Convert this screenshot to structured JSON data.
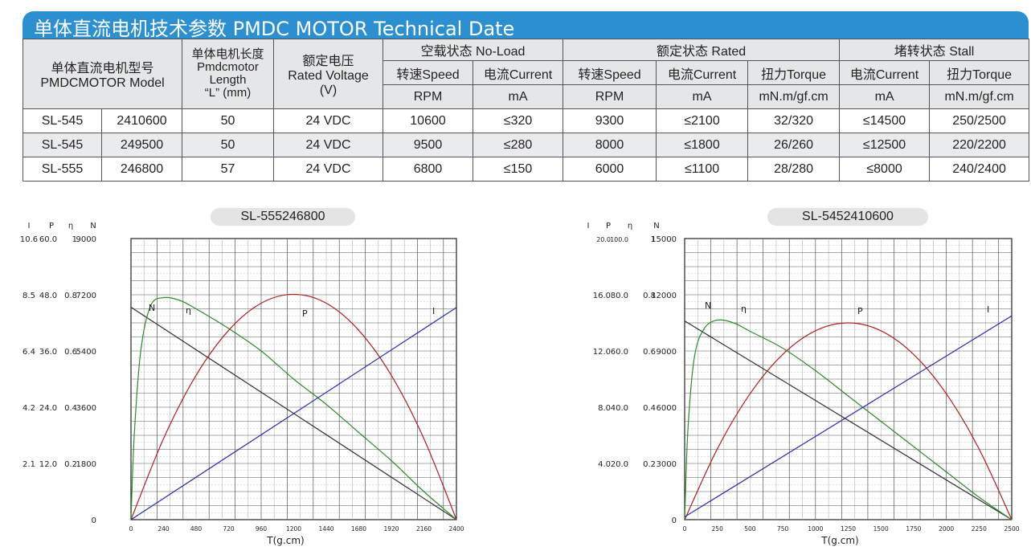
{
  "header": {
    "title": "单体直流电机技术参数  PMDC MOTOR Technical Date"
  },
  "table": {
    "model_header_cn": "单体直流电机型号",
    "model_header_en": "PMDCMOTOR Model",
    "length_header": [
      "单体电机长度",
      "Pmdcmotor",
      "Length",
      "“L”  (mm)"
    ],
    "voltage_header": [
      "额定电压",
      "Rated Voltage",
      "(V)"
    ],
    "noload_header": "空载状态 No-Load",
    "rated_header": "额定状态 Rated",
    "stall_header": "堵转状态 Stall",
    "sub_headers": [
      "转速Speed",
      "电流Current",
      "转速Speed",
      "电流Current",
      "扭力Torque",
      "电流Current",
      "扭力Torque"
    ],
    "units": [
      "RPM",
      "mA",
      "RPM",
      "mA",
      "mN.m/gf.cm",
      "mA",
      "mN.m/gf.cm"
    ],
    "rows": [
      [
        "SL-545",
        "2410600",
        "50",
        "24 VDC",
        "10600",
        "≤320",
        "9300",
        "≤2100",
        "32/320",
        "≤14500",
        "250/2500"
      ],
      [
        "SL-545",
        "249500",
        "50",
        "24 VDC",
        "9500",
        "≤280",
        "8000",
        "≤1800",
        "26/260",
        "≤12500",
        "220/2200"
      ],
      [
        "SL-555",
        "246800",
        "57",
        "24 VDC",
        "6800",
        "≤150",
        "6000",
        "≤1100",
        "28/280",
        "≤8000",
        "240/2400"
      ]
    ]
  },
  "chart_data": [
    {
      "type": "line",
      "title": "SL-555246800",
      "xlabel": "T(g.cm)",
      "axis_headers": [
        "I",
        "P",
        "η",
        "N"
      ],
      "x_ticks": [
        "0",
        "240",
        "480",
        "720",
        "960",
        "1200",
        "1440",
        "1680",
        "1920",
        "2160",
        "2400"
      ],
      "y_tick_rows": [
        [
          "10.6",
          "60.0",
          "1",
          "9000"
        ],
        [
          "8.5",
          "48.0",
          "0.8",
          "7200"
        ],
        [
          "6.4",
          "36.0",
          "0.6",
          "5400"
        ],
        [
          "4.2",
          "24.0",
          "0.4",
          "3600"
        ],
        [
          "2.1",
          "12.0",
          "0.2",
          "1800"
        ],
        [
          "",
          "",
          "",
          "0"
        ]
      ],
      "xlim": [
        0,
        2400
      ],
      "ylim": [
        0,
        9000
      ],
      "grid": true,
      "colors": {
        "N": "#333333",
        "eta": "#2e8b2e",
        "P": "#b02020",
        "I": "#2a2ab0"
      },
      "series": [
        {
          "name": "N",
          "x": [
            0,
            2400
          ],
          "values": [
            6800,
            0
          ]
        },
        {
          "name": "η",
          "x": [
            0,
            24,
            72,
            144,
            240,
            360,
            480,
            720,
            960,
            1200,
            1440,
            1680,
            1920,
            2160,
            2400
          ],
          "values": [
            0,
            0.3,
            0.6,
            0.76,
            0.79,
            0.78,
            0.75,
            0.68,
            0.6,
            0.5,
            0.41,
            0.31,
            0.21,
            0.1,
            0
          ]
        },
        {
          "name": "P",
          "x": [
            0,
            240,
            480,
            720,
            960,
            1200,
            1440,
            1680,
            1920,
            2160,
            2400
          ],
          "values": [
            0,
            17.3,
            30.8,
            40.4,
            46.2,
            48.1,
            46.2,
            40.4,
            30.8,
            17.3,
            0
          ]
        },
        {
          "name": "I",
          "x": [
            0,
            2400
          ],
          "values": [
            0.0,
            8.0
          ]
        }
      ]
    },
    {
      "type": "line",
      "title": "SL-5452410600",
      "xlabel": "T(g.cm)",
      "axis_headers": [
        "I",
        "P",
        "η",
        "N"
      ],
      "x_ticks": [
        "0",
        "250",
        "500",
        "750",
        "1000",
        "1250",
        "1500",
        "1750",
        "2000",
        "2250",
        "2500"
      ],
      "y_tick_rows": [
        [
          "20.0",
          "100.0",
          "1",
          "15000"
        ],
        [
          "16.0",
          "80.0",
          "0.8",
          "12000"
        ],
        [
          "12.0",
          "60.0",
          "0.6",
          "9000"
        ],
        [
          "8.0",
          "40.0",
          "0.4",
          "6000"
        ],
        [
          "4.0",
          "20.0",
          "0.2",
          "3000"
        ],
        [
          "",
          "",
          "",
          "0"
        ]
      ],
      "xlim": [
        0,
        2500
      ],
      "ylim": [
        0,
        15000
      ],
      "grid": true,
      "colors": {
        "N": "#333333",
        "eta": "#2e8b2e",
        "P": "#b02020",
        "I": "#2a2ab0"
      },
      "series": [
        {
          "name": "N",
          "x": [
            0,
            2500
          ],
          "values": [
            10600,
            0
          ]
        },
        {
          "name": "η",
          "x": [
            0,
            25,
            75,
            150,
            250,
            375,
            500,
            750,
            1000,
            1250,
            1500,
            1750,
            2000,
            2250,
            2500
          ],
          "values": [
            0,
            0.32,
            0.58,
            0.68,
            0.71,
            0.7,
            0.67,
            0.61,
            0.53,
            0.44,
            0.35,
            0.26,
            0.17,
            0.08,
            0
          ]
        },
        {
          "name": "P",
          "x": [
            0,
            250,
            500,
            750,
            1000,
            1250,
            1500,
            1750,
            2000,
            2250,
            2500
          ],
          "values": [
            0,
            25.2,
            44.8,
            58.8,
            67.2,
            70.0,
            67.2,
            58.8,
            44.8,
            25.2,
            0
          ]
        },
        {
          "name": "I",
          "x": [
            0,
            2500
          ],
          "values": [
            0.2,
            14.5
          ]
        }
      ]
    }
  ]
}
